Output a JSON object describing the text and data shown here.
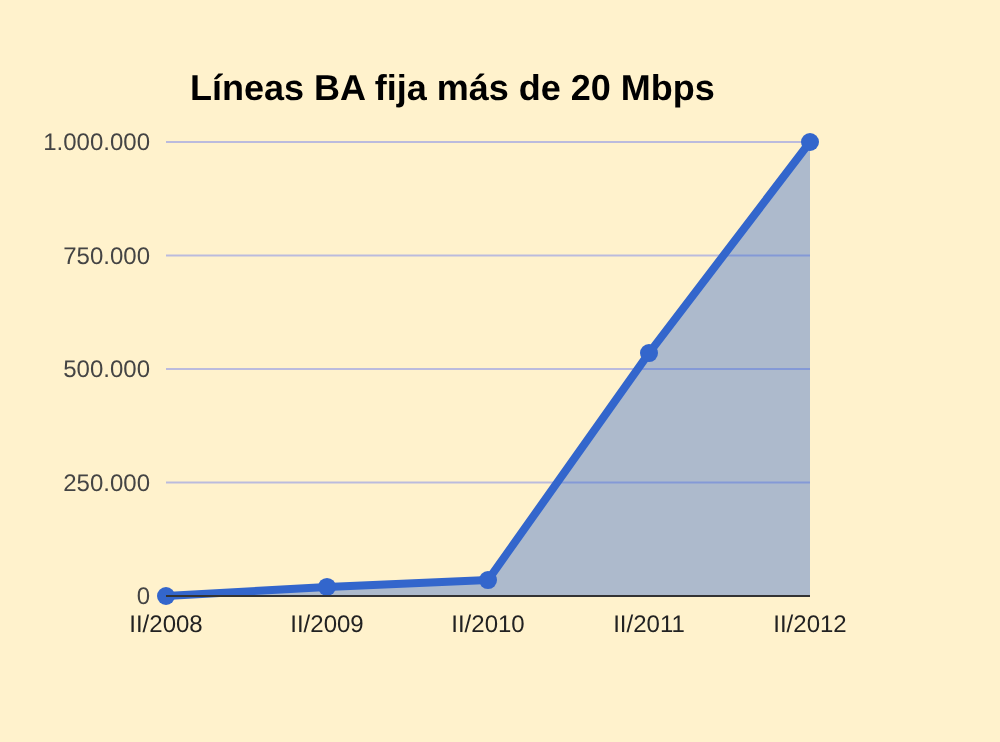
{
  "chart_data": {
    "type": "area",
    "title": "Líneas BA fija más de 20 Mbps",
    "categories": [
      "II/2008",
      "II/2009",
      "II/2010",
      "II/2011",
      "II/2012"
    ],
    "series": [
      {
        "color": "#3366cc",
        "values": [
          0,
          20000,
          35000,
          535000,
          1000000
        ]
      }
    ],
    "ylim": [
      0,
      1000000
    ],
    "yticks": [
      0,
      {
        "value": 250000,
        "label": "250.000"
      },
      {
        "value": 500000,
        "label": "500.000"
      },
      {
        "value": 750000,
        "label": "750.000"
      },
      {
        "value": 1000000,
        "label": "1.000.000"
      }
    ],
    "grid": "y",
    "marker": "circle"
  }
}
